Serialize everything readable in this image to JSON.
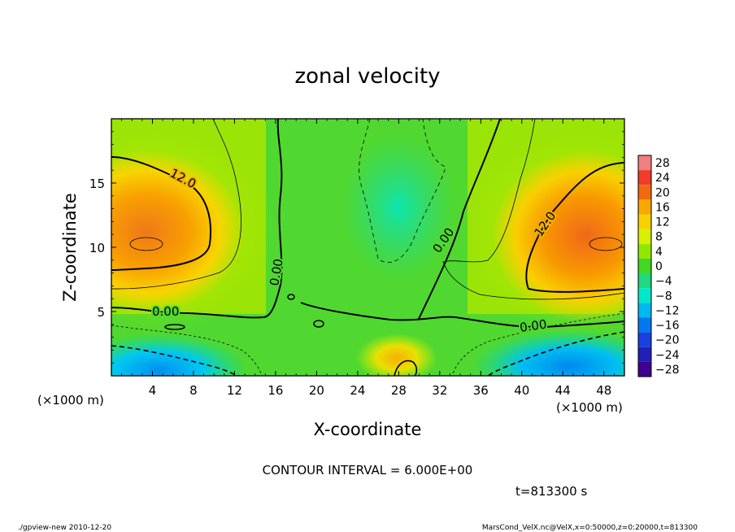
{
  "chart_data": {
    "type": "heatmap",
    "title": "zonal velocity",
    "xlabel": "X-coordinate",
    "ylabel": "Z-coordinate",
    "x_unit_note": "(×1000 m)",
    "y_unit_note": "(×1000 m)",
    "x_range": [
      0,
      50
    ],
    "y_range": [
      0,
      20
    ],
    "x_ticks": [
      4,
      8,
      12,
      16,
      20,
      24,
      28,
      32,
      36,
      40,
      44,
      48
    ],
    "y_ticks": [
      5,
      10,
      15
    ],
    "contour_interval_label": "CONTOUR INTERVAL = 6.000E+00",
    "time_label": "t=813300 s",
    "contour_labels": [
      "12.0",
      "0.00",
      "0.00",
      "0.00",
      "12.0",
      "0.00"
    ],
    "colorbar": {
      "levels": [
        28,
        24,
        20,
        16,
        12,
        8,
        4,
        0,
        -4,
        -8,
        -12,
        -16,
        -20,
        -24,
        -28
      ],
      "colors": [
        "#f08080",
        "#f03c28",
        "#f06a10",
        "#f8a800",
        "#f8d000",
        "#d8f000",
        "#90e800",
        "#40d820",
        "#20d880",
        "#00e8c8",
        "#00b8f0",
        "#0078f0",
        "#1840e0",
        "#2020b8",
        "#400090"
      ]
    },
    "footer_left": "./gpview-new   2010-12-20",
    "footer_right": "MarsCond_VelX.nc@VelX,x=0:50000,z=0:20000,t=813300"
  }
}
